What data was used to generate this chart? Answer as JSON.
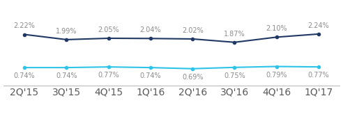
{
  "x_labels": [
    "2Q'15",
    "3Q'15",
    "4Q'15",
    "1Q'16",
    "2Q'16",
    "3Q'16",
    "4Q'16",
    "1Q'17"
  ],
  "dark_blue_values": [
    2.22,
    1.99,
    2.05,
    2.04,
    2.02,
    1.87,
    2.1,
    2.24
  ],
  "light_blue_values": [
    0.74,
    0.74,
    0.77,
    0.74,
    0.69,
    0.75,
    0.79,
    0.77
  ],
  "dark_blue_labels": [
    "2.22%",
    "1.99%",
    "2.05%",
    "2.04%",
    "2.02%",
    "1.87%",
    "2.10%",
    "2.24%"
  ],
  "light_blue_labels": [
    "0.74%",
    "0.74%",
    "0.77%",
    "0.74%",
    "0.69%",
    "0.75%",
    "0.79%",
    "0.77%"
  ],
  "dark_blue_color": "#1F3864",
  "light_blue_color": "#2EC4E8",
  "label_color": "#8C8C8C",
  "xtick_color": "#5A5A5A",
  "background_color": "#ffffff",
  "ylim": [
    -0.6,
    3.6
  ],
  "label_fontsize": 7.0,
  "tick_fontsize": 8.0
}
